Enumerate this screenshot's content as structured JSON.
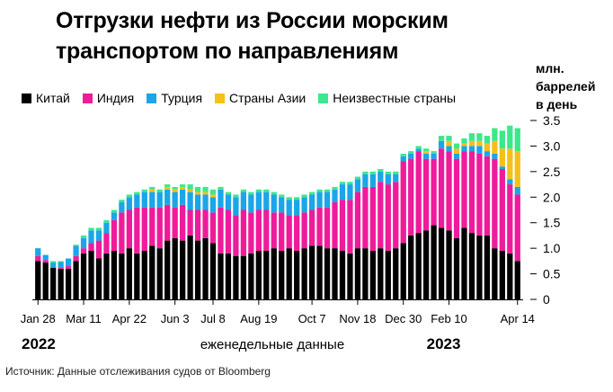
{
  "title": "Отгрузки нефти из России морским транспортом по направлениям",
  "source": "Источник: Данные отслеживания судов от Bloomberg",
  "colors": {
    "Китай": "#000000",
    "Индия": "#ee1b9b",
    "Турция": "#1aa6e8",
    "Страны Азии": "#f5c01a",
    "Неизвестные страны": "#3be88a"
  },
  "chart_data": {
    "type": "bar",
    "stacked": true,
    "unit_label": [
      "млн.",
      "баррелей",
      "в день"
    ],
    "xlabel": "еженедельные данные",
    "ylim": [
      0,
      3.5
    ],
    "yticks": [
      0,
      0.5,
      1.0,
      1.5,
      2.0,
      2.5,
      3.0,
      3.5
    ],
    "ytick_labels": [
      "0",
      "0.5",
      "1.0",
      "1.5",
      "2.0",
      "2.5",
      "3.0",
      "3.5"
    ],
    "y_grid": false,
    "legend_position": "top",
    "x_tick_labels": [
      {
        "label": "Jan 28",
        "index": 0
      },
      {
        "label": "Mar 11",
        "index": 6
      },
      {
        "label": "Apr 22",
        "index": 12
      },
      {
        "label": "Jun 3",
        "index": 18
      },
      {
        "label": "Jul 8",
        "index": 23
      },
      {
        "label": "Aug 19",
        "index": 29
      },
      {
        "label": "Oct 7",
        "index": 36
      },
      {
        "label": "Nov 18",
        "index": 42
      },
      {
        "label": "Dec 30",
        "index": 48
      },
      {
        "label": "Feb 10",
        "index": 54
      },
      {
        "label": "Apr 14",
        "index": 63
      }
    ],
    "year_labels": [
      {
        "label": "2022",
        "index": 0
      },
      {
        "label": "2023",
        "index": 52
      }
    ],
    "series": [
      {
        "name": "Китай",
        "values": [
          0.75,
          0.72,
          0.62,
          0.6,
          0.6,
          0.75,
          0.9,
          0.95,
          0.8,
          0.9,
          0.95,
          0.9,
          1.0,
          0.9,
          0.95,
          1.05,
          1.0,
          1.15,
          1.2,
          1.15,
          1.25,
          1.15,
          1.2,
          1.1,
          0.9,
          0.9,
          0.85,
          0.85,
          0.9,
          0.95,
          0.95,
          1.0,
          0.95,
          1.0,
          0.95,
          1.0,
          1.05,
          1.05,
          1.0,
          1.0,
          0.95,
          0.9,
          1.0,
          1.0,
          0.95,
          1.0,
          0.95,
          1.0,
          1.1,
          1.25,
          1.3,
          1.35,
          1.45,
          1.4,
          1.35,
          1.2,
          1.4,
          1.3,
          1.25,
          1.25,
          1.0,
          0.95,
          0.9,
          0.75
        ]
      },
      {
        "name": "Индия",
        "values": [
          0.1,
          0.05,
          0.0,
          0.03,
          0.05,
          0.1,
          0.1,
          0.15,
          0.35,
          0.4,
          0.6,
          0.8,
          0.75,
          0.9,
          0.85,
          0.75,
          0.8,
          0.7,
          0.6,
          0.7,
          0.5,
          0.6,
          0.55,
          0.6,
          0.9,
          0.85,
          0.8,
          0.9,
          0.8,
          0.8,
          0.8,
          0.7,
          0.75,
          0.65,
          0.7,
          0.7,
          0.7,
          0.75,
          0.8,
          0.9,
          1.0,
          1.05,
          1.1,
          1.2,
          1.25,
          1.3,
          1.3,
          1.3,
          1.6,
          1.5,
          1.6,
          1.4,
          1.3,
          1.55,
          1.55,
          1.55,
          1.5,
          1.6,
          1.6,
          1.55,
          1.75,
          1.6,
          1.35,
          1.3
        ]
      },
      {
        "name": "Турция",
        "values": [
          0.15,
          0.1,
          0.1,
          0.1,
          0.15,
          0.2,
          0.2,
          0.25,
          0.2,
          0.2,
          0.15,
          0.2,
          0.25,
          0.25,
          0.3,
          0.3,
          0.3,
          0.3,
          0.3,
          0.3,
          0.35,
          0.3,
          0.3,
          0.3,
          0.35,
          0.3,
          0.35,
          0.35,
          0.35,
          0.35,
          0.35,
          0.35,
          0.3,
          0.3,
          0.3,
          0.3,
          0.3,
          0.3,
          0.3,
          0.25,
          0.3,
          0.3,
          0.25,
          0.25,
          0.25,
          0.2,
          0.2,
          0.15,
          0.1,
          0.1,
          0.05,
          0.1,
          0.1,
          0.15,
          0.1,
          0.1,
          0.1,
          0.1,
          0.15,
          0.1,
          0.1,
          0.05,
          0.1,
          0.15
        ]
      },
      {
        "name": "Страны Азии",
        "values": [
          0,
          0,
          0,
          0,
          0,
          0,
          0,
          0,
          0,
          0,
          0,
          0,
          0,
          0,
          0,
          0.05,
          0,
          0.05,
          0.05,
          0.05,
          0.05,
          0.05,
          0.05,
          0.05,
          0,
          0,
          0,
          0,
          0,
          0,
          0,
          0,
          0,
          0,
          0,
          0,
          0,
          0,
          0,
          0,
          0,
          0,
          0,
          0,
          0,
          0,
          0,
          0,
          0,
          0,
          0,
          0.05,
          0,
          0,
          0.1,
          0.1,
          0.05,
          0.1,
          0.1,
          0.15,
          0.25,
          0.35,
          0.6,
          0.7
        ]
      },
      {
        "name": "Неизвестные страны",
        "values": [
          0,
          0,
          0.03,
          0.02,
          0,
          0.02,
          0.05,
          0.05,
          0.05,
          0.05,
          0.05,
          0.05,
          0.05,
          0.05,
          0.05,
          0.05,
          0.05,
          0.05,
          0.05,
          0.05,
          0.1,
          0.1,
          0.1,
          0.1,
          0.05,
          0.05,
          0.05,
          0.05,
          0.05,
          0.05,
          0.05,
          0.05,
          0.05,
          0.05,
          0.05,
          0.05,
          0.05,
          0.05,
          0.05,
          0.05,
          0.05,
          0.05,
          0.05,
          0.05,
          0.05,
          0.05,
          0.05,
          0.05,
          0.05,
          0.05,
          0.05,
          0.05,
          0.05,
          0.1,
          0.1,
          0.1,
          0.1,
          0.15,
          0.15,
          0.15,
          0.25,
          0.35,
          0.45,
          0.45
        ]
      }
    ]
  }
}
